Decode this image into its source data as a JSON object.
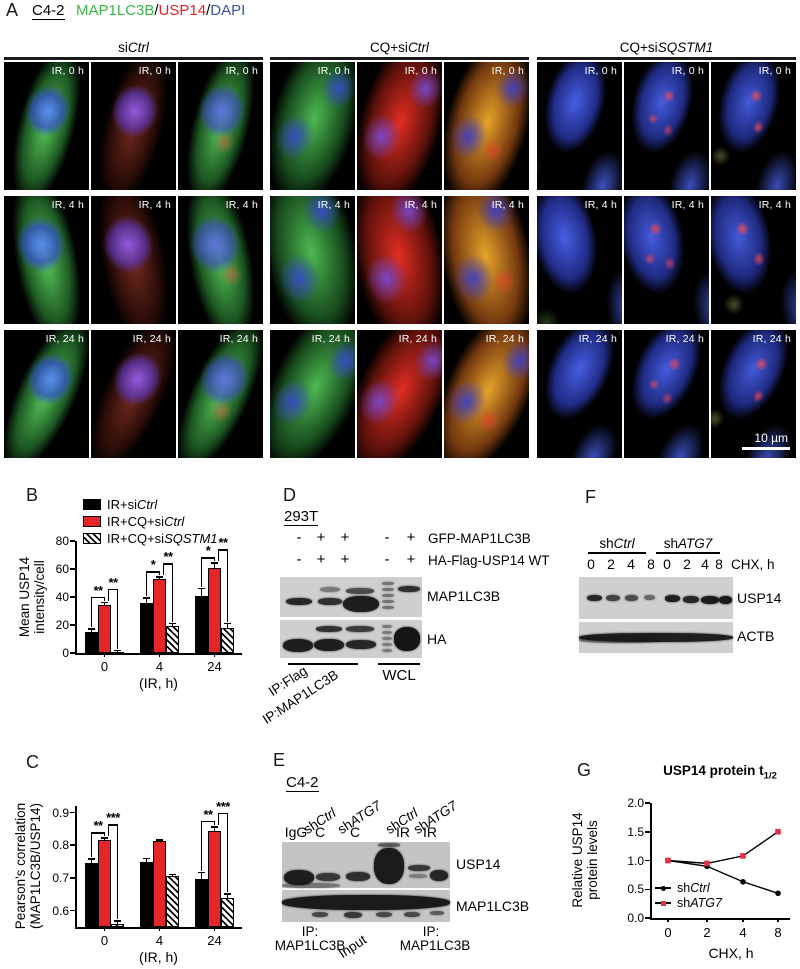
{
  "colors": {
    "bar_red": "#e62529",
    "line_red": "#e0304a",
    "stain_green": "#3cb54a",
    "stain_red": "#ed1c24",
    "stain_blue": "#3953a4"
  },
  "panelA": {
    "label": "A",
    "cell_line": "C4-2",
    "stain1": "MAP1LC3B",
    "sep1": "/",
    "stain2": "USP14",
    "sep2": "/",
    "stain3": "DAPI",
    "groups": [
      {
        "prefix": "si",
        "italic": "Ctrl"
      },
      {
        "prefix": "CQ+si",
        "italic": "Ctrl"
      },
      {
        "prefix": "CQ+si",
        "italic": "SQSTM1"
      }
    ],
    "row_labels": [
      "IR, 0 h",
      "IR, 4 h",
      "IR, 24 h"
    ],
    "scale_bar_label": "10 µm"
  },
  "panelB": {
    "label": "B",
    "legend": [
      {
        "prefix": "IR+si",
        "italic": "Ctrl",
        "style": "black"
      },
      {
        "prefix": "IR+CQ+si",
        "italic": "Ctrl",
        "style": "red"
      },
      {
        "prefix": "IR+CQ+si",
        "italic": "SQSTM1",
        "style": "hatched"
      }
    ],
    "ylabel_line1": "Mean USP14",
    "ylabel_line2": "intensity/cell"
  },
  "panelC": {
    "label": "C",
    "ylabel_line1": "Pearson's correlation",
    "ylabel_line2": "(MAP1LC3B/USP14)"
  },
  "panelD": {
    "label": "D",
    "cell_line": "293T",
    "rows": [
      {
        "signs": [
          "-",
          "+",
          "+",
          "-",
          "+"
        ],
        "label": "GFP-MAP1LC3B"
      },
      {
        "signs": [
          "-",
          "+",
          "+",
          "-",
          "+"
        ],
        "label": "HA-Flag-USP14 WT"
      }
    ],
    "blot1_label": "MAP1LC3B",
    "blot2_label": "HA",
    "ip_label1": "IP:Flag",
    "ip_label2": "IP:MAP1LC3B",
    "wcl_label": "WCL"
  },
  "panelE": {
    "label": "E",
    "cell_line": "C4-2",
    "diag": [
      {
        "prefix": "sh",
        "italic": "Ctrl"
      },
      {
        "prefix": "sh",
        "italic": "ATG7"
      },
      {
        "prefix": "sh",
        "italic": "Ctrl"
      },
      {
        "prefix": "sh",
        "italic": "ATG7"
      }
    ],
    "lanes": [
      "IgG",
      "C",
      "C",
      "IR",
      "IR"
    ],
    "blot1_label": "USP14",
    "blot2_label": "MAP1LC3B",
    "bottom_left_ip": "IP:",
    "bottom_left_target": "MAP1LC3B",
    "input": "Input",
    "bottom_right_ip": "IP:",
    "bottom_right_target": "MAP1LC3B"
  },
  "panelF": {
    "label": "F",
    "groups": [
      {
        "prefix": "sh",
        "italic": "Ctrl"
      },
      {
        "prefix": "sh",
        "italic": "ATG7"
      }
    ],
    "lanes": [
      "0",
      "2",
      "4",
      "8",
      "0",
      "2",
      "4",
      "8"
    ],
    "chx": "CHX, h",
    "blot1_label": "USP14",
    "blot2_label": "ACTB"
  },
  "panelG": {
    "label": "G",
    "title_main": "USP14 protein t",
    "title_sub": "1/2",
    "ylabel_line1": "Relative USP14",
    "ylabel_line2": "protein levels",
    "xlabel": "CHX, h",
    "legend": [
      {
        "prefix": "sh",
        "italic": "Ctrl"
      },
      {
        "prefix": "sh",
        "italic": "ATG7"
      }
    ]
  },
  "chart_data": [
    {
      "id": "chartB",
      "type": "bar",
      "title": "",
      "ylabel": "Mean USP14 intensity/cell",
      "xlabel": "(IR, h)",
      "categories": [
        "0",
        "4",
        "24"
      ],
      "series": [
        {
          "name": "IR+siCtrl",
          "style": "black",
          "values": [
            15,
            36,
            41
          ],
          "errors": [
            2,
            3,
            5
          ]
        },
        {
          "name": "IR+CQ+siCtrl",
          "style": "red",
          "values": [
            34,
            53,
            61
          ],
          "errors": [
            2,
            1,
            3
          ]
        },
        {
          "name": "IR+CQ+siSQSTM1",
          "style": "hatched",
          "values": [
            1,
            19,
            18
          ],
          "errors": [
            0.5,
            2,
            3
          ]
        }
      ],
      "ylim": [
        0,
        80
      ],
      "yticks": [
        0,
        20,
        40,
        60,
        80
      ],
      "ytick_labels": [
        "0",
        "20",
        "40",
        "60",
        "80"
      ],
      "annotations": [
        {
          "group": 0,
          "labels": [
            "**",
            "**"
          ]
        },
        {
          "group": 1,
          "labels": [
            "*",
            "**"
          ]
        },
        {
          "group": 2,
          "labels": [
            "*",
            "**"
          ]
        }
      ],
      "legend_position": "top-left",
      "grid": false
    },
    {
      "id": "chartC",
      "type": "bar",
      "title": "",
      "ylabel": "Pearson's correlation (MAP1LC3B/USP14)",
      "xlabel": "(IR, h)",
      "categories": [
        "0",
        "4",
        "24"
      ],
      "series": [
        {
          "name": "IR+siCtrl",
          "style": "black",
          "values": [
            0.745,
            0.75,
            0.698
          ],
          "errors": [
            0.012,
            0.008,
            0.018
          ]
        },
        {
          "name": "IR+CQ+siCtrl",
          "style": "red",
          "values": [
            0.815,
            0.812,
            0.845
          ],
          "errors": [
            0.006,
            0.004,
            0.01
          ]
        },
        {
          "name": "IR+CQ+siSQSTM1",
          "style": "hatched",
          "values": [
            0.56,
            0.705,
            0.638
          ],
          "errors": [
            0.008,
            0.005,
            0.012
          ]
        }
      ],
      "ylim": [
        0.55,
        0.92
      ],
      "yticks": [
        0.6,
        0.7,
        0.8,
        0.9
      ],
      "ytick_labels": [
        "0.6",
        "0.7",
        "0.8",
        "0.9"
      ],
      "annotations": [
        {
          "group": 0,
          "labels": [
            "**",
            "***"
          ]
        },
        {
          "group": 2,
          "labels": [
            "**",
            "***"
          ]
        }
      ],
      "grid": false
    },
    {
      "id": "chartG",
      "type": "line",
      "title": "USP14 protein t1/2",
      "ylabel": "Relative USP14 protein levels",
      "xlabel": "CHX, h",
      "x": [
        0,
        2,
        4,
        8
      ],
      "xtick_labels": [
        "0",
        "2",
        "4",
        "8"
      ],
      "series": [
        {
          "name": "shCtrl",
          "color": "#000000",
          "marker": "circle",
          "values": [
            1.0,
            0.9,
            0.63,
            0.43
          ]
        },
        {
          "name": "shATG7",
          "color": "#e0304a",
          "marker": "square",
          "values": [
            1.0,
            0.95,
            1.08,
            1.5
          ]
        }
      ],
      "ylim": [
        0,
        2.0
      ],
      "yticks": [
        0,
        0.5,
        1.0,
        1.5,
        2.0
      ],
      "ytick_labels": [
        "0.0",
        "0.5",
        "1.0",
        "1.5",
        "2.0"
      ],
      "legend_position": "bottom-left",
      "grid": false
    }
  ]
}
